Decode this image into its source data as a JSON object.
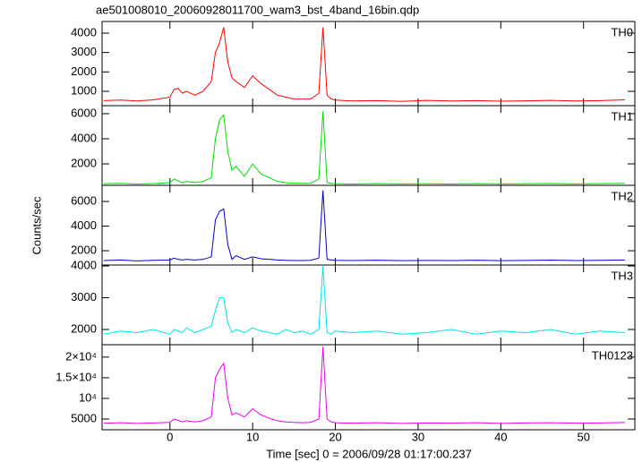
{
  "title": "ae501008010_20060928011700_wam3_bst_4band_16bin.qdp",
  "xlabel": "Time [sec] 0 = 2006/09/28 01:17:00.237",
  "ylabel": "Counts/sec",
  "xlim": [
    -8.2,
    56.2
  ],
  "xticks": [
    0,
    10,
    20,
    30,
    40,
    50
  ],
  "chart_data": [
    {
      "type": "line",
      "label": "TH0",
      "color": "#ff0000",
      "ylim": [
        260,
        4600
      ],
      "yticks": [
        1000,
        2000,
        3000,
        4000
      ],
      "x": [
        -8,
        -6,
        -4,
        -2,
        0,
        0.5,
        1,
        1.5,
        2,
        3,
        4,
        5,
        5.5,
        6,
        6.5,
        7,
        7.5,
        8,
        9,
        10,
        11,
        12,
        13,
        14,
        15,
        16,
        17,
        18,
        18.5,
        19,
        19.5,
        20,
        22,
        25,
        28,
        31,
        34,
        37,
        40,
        43,
        46,
        49,
        52,
        55
      ],
      "values": [
        520,
        550,
        500,
        560,
        700,
        1100,
        1150,
        900,
        1000,
        800,
        1000,
        1500,
        3000,
        3500,
        4300,
        2500,
        1700,
        1500,
        1200,
        1800,
        1400,
        1100,
        800,
        700,
        600,
        600,
        600,
        900,
        4300,
        800,
        600,
        550,
        500,
        520,
        480,
        530,
        500,
        520,
        490,
        510,
        530,
        500,
        520,
        560
      ]
    },
    {
      "type": "line",
      "label": "TH1",
      "color": "#00dd00",
      "ylim": [
        290,
        6640
      ],
      "yticks": [
        2000,
        4000,
        6000
      ],
      "x": [
        -8,
        -6,
        -4,
        -2,
        0,
        0.5,
        1,
        1.5,
        2,
        3,
        4,
        5,
        5.5,
        6,
        6.5,
        7,
        7.5,
        8,
        9,
        10,
        11,
        12,
        13,
        14,
        15,
        16,
        17,
        18,
        18.5,
        19,
        19.5,
        20,
        22,
        25,
        28,
        31,
        34,
        37,
        40,
        43,
        46,
        49,
        52,
        55
      ],
      "values": [
        420,
        450,
        400,
        430,
        500,
        800,
        650,
        500,
        600,
        500,
        600,
        900,
        4000,
        5500,
        5900,
        3000,
        1500,
        1800,
        1000,
        2000,
        1200,
        900,
        600,
        500,
        450,
        450,
        450,
        800,
        6200,
        500,
        450,
        420,
        400,
        430,
        410,
        420,
        400,
        430,
        410,
        420,
        440,
        410,
        430,
        450
      ]
    },
    {
      "type": "line",
      "label": "TH2",
      "color": "#0000cc",
      "ylim": [
        840,
        7310
      ],
      "yticks": [
        2000,
        4000,
        6000
      ],
      "x": [
        -8,
        -6,
        -4,
        -2,
        0,
        0.5,
        1,
        1.5,
        2,
        3,
        4,
        5,
        5.5,
        6,
        6.5,
        7,
        7.5,
        8,
        9,
        10,
        11,
        12,
        13,
        14,
        15,
        16,
        17,
        18,
        18.5,
        19,
        19.5,
        20,
        22,
        25,
        28,
        31,
        34,
        37,
        40,
        43,
        46,
        49,
        52,
        55
      ],
      "values": [
        1200,
        1250,
        1180,
        1220,
        1250,
        1400,
        1300,
        1250,
        1300,
        1250,
        1300,
        1500,
        4500,
        5200,
        5400,
        2500,
        1300,
        1600,
        1300,
        1500,
        1350,
        1300,
        1250,
        1220,
        1200,
        1200,
        1220,
        1400,
        6900,
        1300,
        1250,
        1220,
        1200,
        1230,
        1190,
        1210,
        1200,
        1230,
        1190,
        1210,
        1240,
        1200,
        1220,
        1250
      ]
    },
    {
      "type": "line",
      "label": "TH3",
      "color": "#00e5e5",
      "ylim": [
        1520,
        4030
      ],
      "yticks": [
        2000,
        3000,
        4000
      ],
      "x": [
        -8,
        -6,
        -4,
        -2,
        0,
        0.5,
        1,
        1.5,
        2,
        3,
        4,
        5,
        5.5,
        6,
        6.5,
        7,
        7.5,
        8,
        9,
        10,
        11,
        12,
        13,
        14,
        15,
        16,
        17,
        18,
        18.5,
        19,
        19.5,
        20,
        22,
        25,
        28,
        31,
        34,
        37,
        40,
        43,
        46,
        49,
        52,
        55
      ],
      "values": [
        1850,
        1950,
        1900,
        2000,
        1850,
        2000,
        1950,
        1900,
        2050,
        1900,
        2000,
        2100,
        2600,
        3000,
        3000,
        2200,
        1900,
        2000,
        1900,
        2050,
        1950,
        1900,
        1850,
        2000,
        1900,
        1950,
        1850,
        2000,
        4000,
        1900,
        1850,
        1950,
        1900,
        1950,
        1850,
        1900,
        2000,
        1850,
        1950,
        1900,
        2000,
        1850,
        1950,
        1900
      ]
    },
    {
      "type": "line",
      "label": "TH0123",
      "color": "#ee00ee",
      "ylim": [
        2400,
        23000
      ],
      "yticks": [
        5000,
        {
          "value": 10000,
          "label": "10⁴"
        },
        {
          "value": 15000,
          "label": "1.5×10⁴"
        },
        {
          "value": 20000,
          "label": "2×10⁴"
        }
      ],
      "x": [
        -8,
        -6,
        -4,
        -2,
        0,
        0.5,
        1,
        1.5,
        2,
        3,
        4,
        5,
        5.5,
        6,
        6.5,
        7,
        7.5,
        8,
        9,
        10,
        11,
        12,
        13,
        14,
        15,
        16,
        17,
        18,
        18.5,
        19,
        19.5,
        20,
        22,
        25,
        28,
        31,
        34,
        37,
        40,
        43,
        46,
        49,
        52,
        55
      ],
      "values": [
        4000,
        4100,
        3950,
        4050,
        4200,
        5000,
        4700,
        4300,
        4600,
        4300,
        4600,
        5500,
        15000,
        17000,
        18500,
        10000,
        6000,
        6500,
        5500,
        7500,
        6000,
        5200,
        4600,
        4300,
        4200,
        4100,
        4200,
        5000,
        22500,
        5000,
        4300,
        4100,
        4000,
        4100,
        3950,
        4050,
        4000,
        4100,
        3950,
        4050,
        4100,
        4000,
        4050,
        4150
      ]
    }
  ]
}
